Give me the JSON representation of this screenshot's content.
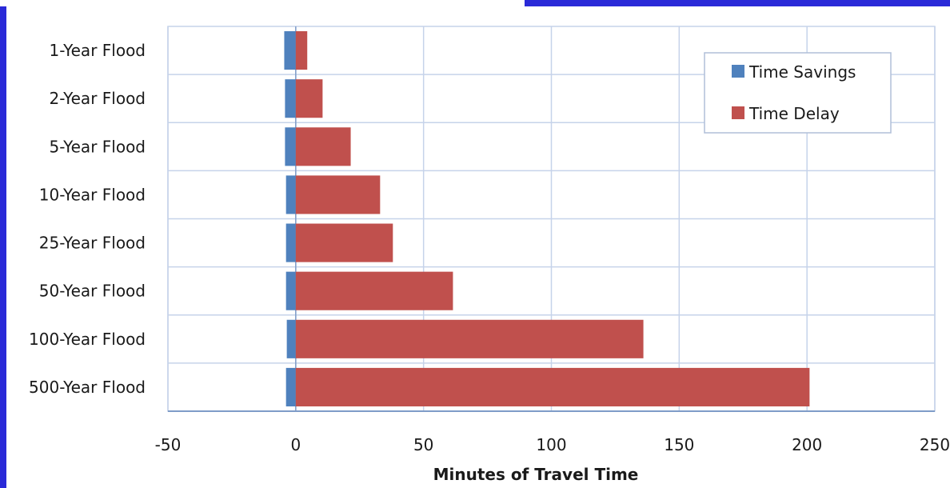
{
  "chart_data": {
    "type": "bar",
    "orientation": "horizontal",
    "stacked": true,
    "categories": [
      "1-Year Flood",
      "2-Year Flood",
      "5-Year Flood",
      "10-Year Flood",
      "25-Year Flood",
      "50-Year Flood",
      "100-Year Flood",
      "500-Year Flood"
    ],
    "series": [
      {
        "name": "Time Savings",
        "color": "#4f81bd",
        "values": [
          -4.5,
          -4.2,
          -4.2,
          -3.8,
          -3.8,
          -3.8,
          -3.5,
          -3.8
        ]
      },
      {
        "name": "Time Delay",
        "color": "#c0504d",
        "values": [
          4.5,
          10.5,
          21.5,
          33,
          38,
          61.5,
          136,
          201
        ]
      }
    ],
    "xlabel": "Minutes of Travel Time",
    "ylabel": "",
    "title": "",
    "xlim": [
      -50,
      250
    ],
    "xticks": [
      "-50",
      "0",
      "50",
      "100",
      "150",
      "200",
      "250"
    ],
    "grid": true,
    "legend": "top-right"
  }
}
